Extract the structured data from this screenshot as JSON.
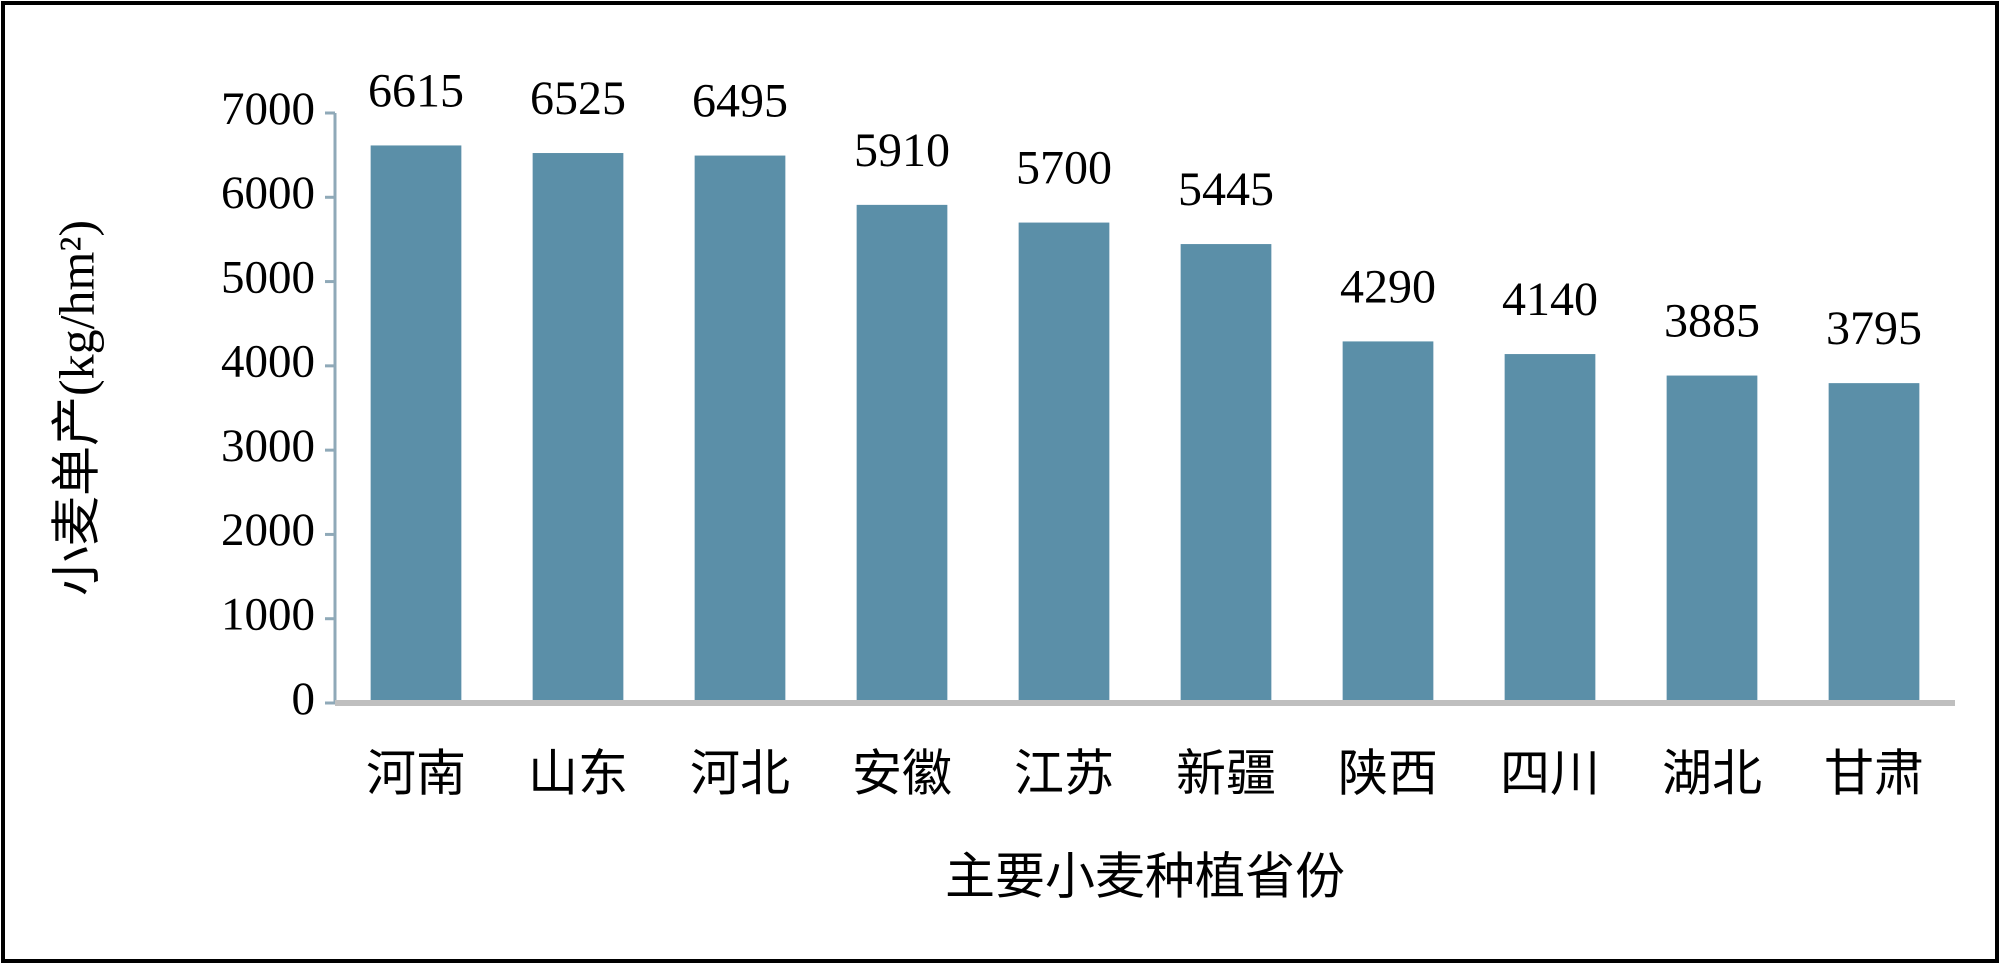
{
  "chart_data": {
    "type": "bar",
    "x_label": "主要小麦种植省份",
    "y_label": "小麦单产(kg/hm²)",
    "categories": [
      "河南",
      "山东",
      "河北",
      "安徽",
      "江苏",
      "新疆",
      "陕西",
      "四川",
      "湖北",
      "甘肃"
    ],
    "values": [
      6615,
      6525,
      6495,
      5910,
      5700,
      5445,
      4290,
      4140,
      3885,
      3795
    ],
    "color": "#5b8fa8",
    "ylim": [
      0,
      7000
    ],
    "yticks": [
      0,
      1000,
      2000,
      3000,
      4000,
      5000,
      6000,
      7000
    ],
    "grid": false
  }
}
